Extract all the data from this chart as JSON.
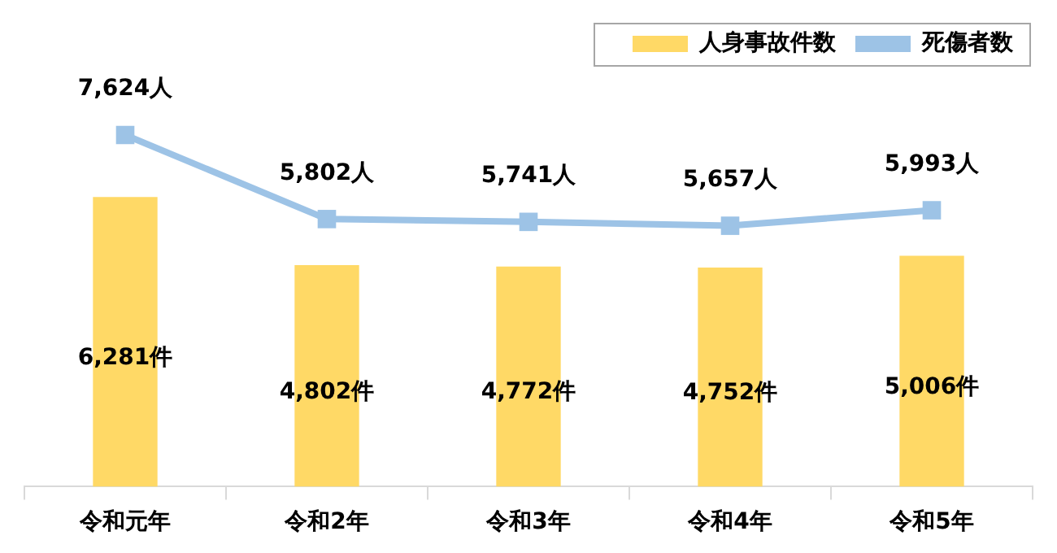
{
  "chart_data": {
    "type": "bar",
    "categories": [
      "令和元年",
      "令和2年",
      "令和3年",
      "令和4年",
      "令和5年"
    ],
    "series": [
      {
        "name": "人身事故件数",
        "color": "#ffd966",
        "values": [
          6281,
          4802,
          4772,
          4752,
          5006
        ],
        "value_labels": [
          "6,281件",
          "4,802件",
          "4,772件",
          "4,752件",
          "5,006件"
        ]
      },
      {
        "name": "死傷者数",
        "type": "line",
        "color": "#9dc3e6",
        "values": [
          7624,
          5802,
          5741,
          5657,
          5993
        ],
        "value_labels": [
          "7,624人",
          "5,802人",
          "5,741人",
          "5,657人",
          "5,993人"
        ]
      }
    ],
    "legend": "top right",
    "marker": "square",
    "grid": false
  }
}
